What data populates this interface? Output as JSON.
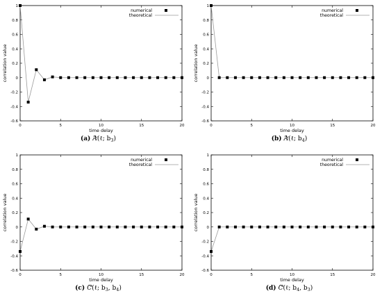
{
  "chart_data": [
    {
      "type": "scatter",
      "panel_label": "(a)",
      "caption": "A(ℓ; b3)",
      "caption_parts": {
        "letter": "A",
        "args": "(ℓ; b",
        "sub1": "3",
        "sep": "",
        "sub2": "",
        "close": ")",
        "accent": "tilde"
      },
      "xlabel": "time delay",
      "ylabel": "correlation value",
      "xlim": [
        0,
        20
      ],
      "ylim": [
        -0.6,
        1
      ],
      "xticks": [
        0,
        5,
        10,
        15,
        20
      ],
      "yticks": [
        -0.6,
        -0.4,
        -0.2,
        0,
        0.2,
        0.4,
        0.6,
        0.8,
        1
      ],
      "legend_position": "top-right",
      "series": [
        {
          "name": "numerical",
          "style": "markers",
          "color": "#000000",
          "x": [
            0,
            1,
            2,
            3,
            4,
            5,
            6,
            7,
            8,
            9,
            10,
            11,
            12,
            13,
            14,
            15,
            16,
            17,
            18,
            19,
            20
          ],
          "y": [
            1,
            -0.34,
            0.11,
            -0.03,
            0.01,
            0,
            0,
            0,
            0,
            0,
            0,
            0,
            0,
            0,
            0,
            0,
            0,
            0,
            0,
            0,
            0
          ]
        },
        {
          "name": "theoretical",
          "style": "line",
          "color": "#9a9a9a",
          "x": [
            0,
            1,
            2,
            3,
            4,
            5,
            6,
            7,
            8,
            9,
            10,
            11,
            12,
            13,
            14,
            15,
            16,
            17,
            18,
            19,
            20
          ],
          "y": [
            1,
            -0.34,
            0.11,
            -0.03,
            0.01,
            0,
            0,
            0,
            0,
            0,
            0,
            0,
            0,
            0,
            0,
            0,
            0,
            0,
            0,
            0,
            0
          ]
        }
      ]
    },
    {
      "type": "scatter",
      "panel_label": "(b)",
      "caption": "A(ℓ; b4)",
      "caption_parts": {
        "letter": "A",
        "args": "(ℓ; b",
        "sub1": "4",
        "sep": "",
        "sub2": "",
        "close": ")",
        "accent": "tilde"
      },
      "xlabel": "time delay",
      "ylabel": "correlation value",
      "xlim": [
        0,
        20
      ],
      "ylim": [
        -0.6,
        1
      ],
      "xticks": [
        0,
        5,
        10,
        15,
        20
      ],
      "yticks": [
        -0.6,
        -0.4,
        -0.2,
        0,
        0.2,
        0.4,
        0.6,
        0.8,
        1
      ],
      "legend_position": "top-right",
      "series": [
        {
          "name": "numerical",
          "style": "markers",
          "color": "#000000",
          "x": [
            0,
            1,
            2,
            3,
            4,
            5,
            6,
            7,
            8,
            9,
            10,
            11,
            12,
            13,
            14,
            15,
            16,
            17,
            18,
            19,
            20
          ],
          "y": [
            1,
            0,
            0,
            0,
            0,
            0,
            0,
            0,
            0,
            0,
            0,
            0,
            0,
            0,
            0,
            0,
            0,
            0,
            0,
            0,
            0
          ]
        },
        {
          "name": "theoretical",
          "style": "line",
          "color": "#9a9a9a",
          "x": [
            0,
            1,
            2,
            3,
            4,
            5,
            6,
            7,
            8,
            9,
            10,
            11,
            12,
            13,
            14,
            15,
            16,
            17,
            18,
            19,
            20
          ],
          "y": [
            1,
            0,
            0,
            0,
            0,
            0,
            0,
            0,
            0,
            0,
            0,
            0,
            0,
            0,
            0,
            0,
            0,
            0,
            0,
            0,
            0
          ]
        }
      ]
    },
    {
      "type": "scatter",
      "panel_label": "(c)",
      "caption": "C(ℓ; b3, b4)",
      "caption_parts": {
        "letter": "C",
        "args": "(ℓ; b",
        "sub1": "3",
        "sep": ", b",
        "sub2": "4",
        "close": ")",
        "accent": "tilde"
      },
      "xlabel": "time delay",
      "ylabel": "correlation value",
      "xlim": [
        0,
        20
      ],
      "ylim": [
        -0.6,
        1
      ],
      "xticks": [
        0,
        5,
        10,
        15,
        20
      ],
      "yticks": [
        -0.6,
        -0.4,
        -0.2,
        0,
        0.2,
        0.4,
        0.6,
        0.8,
        1
      ],
      "legend_position": "top-right",
      "series": [
        {
          "name": "numerical",
          "style": "markers",
          "color": "#000000",
          "x": [
            0,
            1,
            2,
            3,
            4,
            5,
            6,
            7,
            8,
            9,
            10,
            11,
            12,
            13,
            14,
            15,
            16,
            17,
            18,
            19,
            20
          ],
          "y": [
            -0.34,
            0.11,
            -0.03,
            0.01,
            0,
            0,
            0,
            0,
            0,
            0,
            0,
            0,
            0,
            0,
            0,
            0,
            0,
            0,
            0,
            0,
            0
          ]
        },
        {
          "name": "theoretical",
          "style": "line",
          "color": "#9a9a9a",
          "x": [
            0,
            1,
            2,
            3,
            4,
            5,
            6,
            7,
            8,
            9,
            10,
            11,
            12,
            13,
            14,
            15,
            16,
            17,
            18,
            19,
            20
          ],
          "y": [
            -0.34,
            0.11,
            -0.03,
            0.01,
            0,
            0,
            0,
            0,
            0,
            0,
            0,
            0,
            0,
            0,
            0,
            0,
            0,
            0,
            0,
            0,
            0
          ]
        }
      ]
    },
    {
      "type": "scatter",
      "panel_label": "(d)",
      "caption": "C(ℓ; b4, b3)",
      "caption_parts": {
        "letter": "C",
        "args": "(ℓ; b",
        "sub1": "4",
        "sep": ", b",
        "sub2": "3",
        "close": ")",
        "accent": "tilde"
      },
      "xlabel": "time delay",
      "ylabel": "correlation value",
      "xlim": [
        0,
        20
      ],
      "ylim": [
        -0.6,
        1
      ],
      "xticks": [
        0,
        5,
        10,
        15,
        20
      ],
      "yticks": [
        -0.6,
        -0.4,
        -0.2,
        0,
        0.2,
        0.4,
        0.6,
        0.8,
        1
      ],
      "legend_position": "top-right",
      "series": [
        {
          "name": "numerical",
          "style": "markers",
          "color": "#000000",
          "x": [
            0,
            1,
            2,
            3,
            4,
            5,
            6,
            7,
            8,
            9,
            10,
            11,
            12,
            13,
            14,
            15,
            16,
            17,
            18,
            19,
            20
          ],
          "y": [
            -0.34,
            0,
            0,
            0,
            0,
            0,
            0,
            0,
            0,
            0,
            0,
            0,
            0,
            0,
            0,
            0,
            0,
            0,
            0,
            0,
            0
          ]
        },
        {
          "name": "theoretical",
          "style": "line",
          "color": "#9a9a9a",
          "x": [
            0,
            1,
            2,
            3,
            4,
            5,
            6,
            7,
            8,
            9,
            10,
            11,
            12,
            13,
            14,
            15,
            16,
            17,
            18,
            19,
            20
          ],
          "y": [
            -0.34,
            0,
            0,
            0,
            0,
            0,
            0,
            0,
            0,
            0,
            0,
            0,
            0,
            0,
            0,
            0,
            0,
            0,
            0,
            0,
            0
          ]
        }
      ]
    }
  ]
}
